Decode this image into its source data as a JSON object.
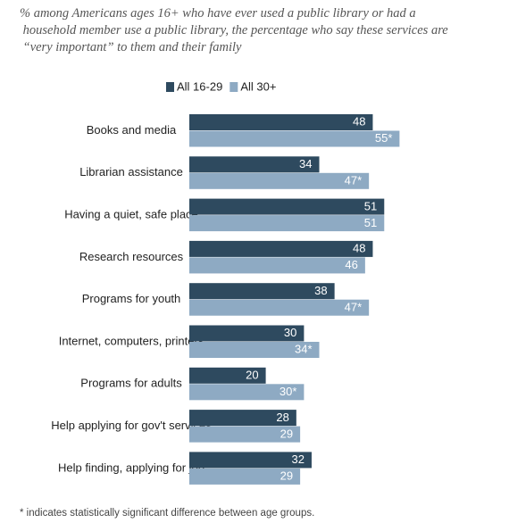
{
  "chart_data": {
    "type": "bar",
    "orientation": "horizontal",
    "subtitle": "% among Americans ages 16+ who have ever used a public library or had a household member use a public library, the percentage who say these services are “very important” to them and their family",
    "categories": [
      "Books and media",
      "Librarian assistance",
      "Having a quiet, safe place",
      "Research resources",
      "Programs for youth",
      "Internet, computers, printers",
      "Programs for adults",
      "Help applying for gov't services",
      "Help finding, applying for job"
    ],
    "series": [
      {
        "name": "All 16-29",
        "color": "#2e4a5f",
        "values": [
          48,
          34,
          51,
          48,
          38,
          30,
          20,
          28,
          32
        ]
      },
      {
        "name": "All 30+",
        "color": "#8eaac3",
        "values": [
          55,
          47,
          51,
          46,
          47,
          34,
          30,
          29,
          29
        ],
        "value_labels": [
          "55*",
          "47*",
          "51",
          "46",
          "47*",
          "34*",
          "30*",
          "29",
          "29"
        ]
      }
    ],
    "note": "* indicates statistically significant difference between age groups."
  }
}
